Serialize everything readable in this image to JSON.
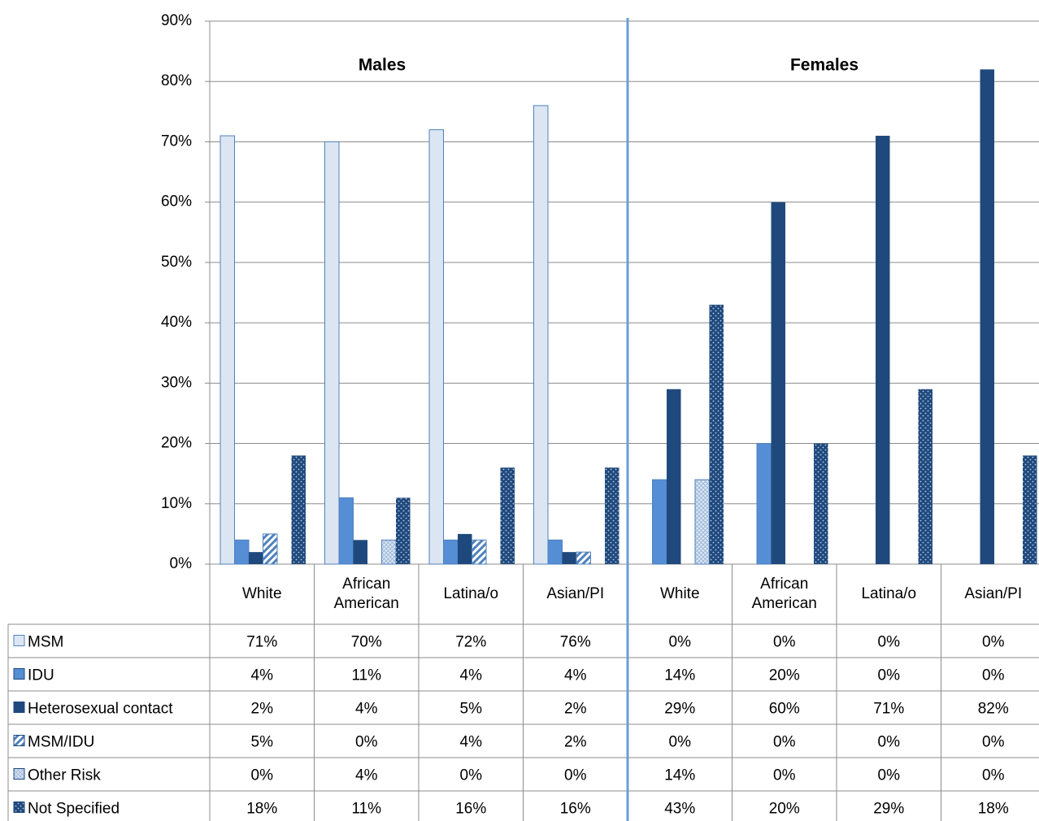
{
  "chart_data": {
    "type": "bar",
    "groups": [
      {
        "name": "Males",
        "categories": [
          "White",
          "African American",
          "Latina/o",
          "Asian/PI"
        ]
      },
      {
        "name": "Females",
        "categories": [
          "White",
          "African American",
          "Latina/o",
          "Asian/PI"
        ]
      }
    ],
    "series": [
      {
        "name": "MSM",
        "color": "#dce6f2",
        "pattern": "solid",
        "values": [
          71,
          70,
          72,
          76,
          0,
          0,
          0,
          0
        ],
        "value_labels": [
          "71%",
          "70%",
          "72%",
          "76%",
          "0%",
          "0%",
          "0%",
          "0%"
        ]
      },
      {
        "name": "IDU",
        "color": "#558ed5",
        "pattern": "solid",
        "values": [
          4,
          11,
          4,
          4,
          14,
          20,
          0,
          0
        ],
        "value_labels": [
          "4%",
          "11%",
          "4%",
          "4%",
          "14%",
          "20%",
          "0%",
          "0%"
        ]
      },
      {
        "name": "Heterosexual contact",
        "color": "#1f497d",
        "pattern": "solid",
        "values": [
          2,
          4,
          5,
          2,
          29,
          60,
          71,
          82
        ],
        "value_labels": [
          "2%",
          "4%",
          "5%",
          "2%",
          "29%",
          "60%",
          "71%",
          "82%"
        ]
      },
      {
        "name": "MSM/IDU",
        "color": "#4f81bd",
        "pattern": "stripes",
        "values": [
          5,
          0,
          4,
          2,
          0,
          0,
          0,
          0
        ],
        "value_labels": [
          "5%",
          "0%",
          "4%",
          "2%",
          "0%",
          "0%",
          "0%",
          "0%"
        ]
      },
      {
        "name": "Other Risk",
        "color": "#95b3d7",
        "pattern": "crosshatch",
        "values": [
          0,
          4,
          0,
          0,
          14,
          0,
          0,
          0
        ],
        "value_labels": [
          "0%",
          "4%",
          "0%",
          "0%",
          "14%",
          "0%",
          "0%",
          "0%"
        ]
      },
      {
        "name": "Not Specified",
        "color": "#1f497d",
        "pattern": "dots",
        "values": [
          18,
          11,
          16,
          16,
          43,
          20,
          29,
          18
        ],
        "value_labels": [
          "18%",
          "11%",
          "16%",
          "16%",
          "43%",
          "20%",
          "29%",
          "18%"
        ]
      }
    ],
    "ylim": [
      0,
      90
    ],
    "yticks": [
      {
        "value": 0,
        "label": "0%"
      },
      {
        "value": 10,
        "label": "10%"
      },
      {
        "value": 20,
        "label": "20%"
      },
      {
        "value": 30,
        "label": "30%"
      },
      {
        "value": 40,
        "label": "40%"
      },
      {
        "value": 50,
        "label": "50%"
      },
      {
        "value": 60,
        "label": "60%"
      },
      {
        "value": 70,
        "label": "70%"
      },
      {
        "value": 80,
        "label": "80%"
      },
      {
        "value": 90,
        "label": "90%"
      }
    ],
    "grid": true
  }
}
